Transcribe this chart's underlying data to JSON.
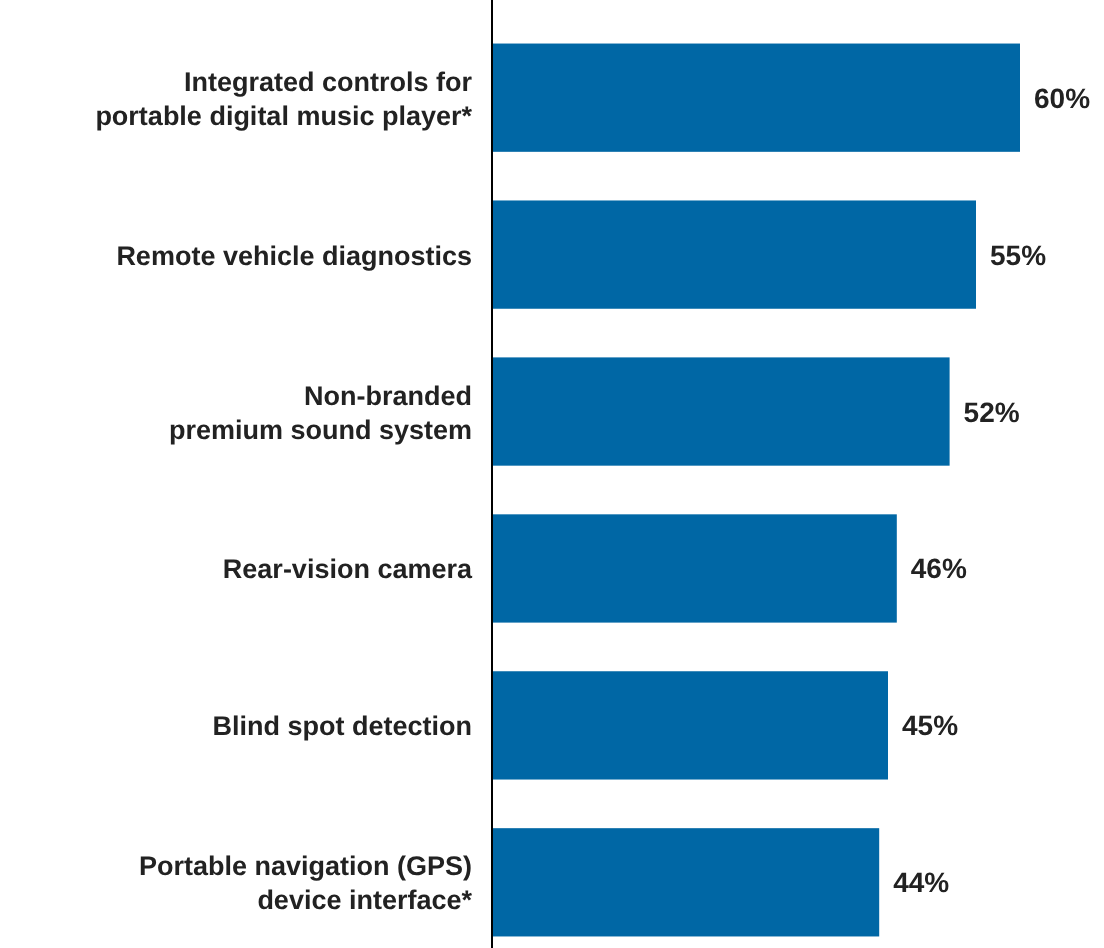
{
  "chart_data": {
    "type": "bar",
    "orientation": "horizontal",
    "categories": [
      "Integrated controls for\nportable digital music player*",
      "Remote vehicle diagnostics",
      "Non-branded\npremium sound system",
      "Rear-vision camera",
      "Blind spot detection",
      "Portable navigation (GPS)\ndevice interface*"
    ],
    "values": [
      60,
      55,
      52,
      46,
      45,
      44
    ],
    "value_labels": [
      "60%",
      "55%",
      "52%",
      "46%",
      "45%",
      "44%"
    ],
    "color": "#0067a5"
  }
}
